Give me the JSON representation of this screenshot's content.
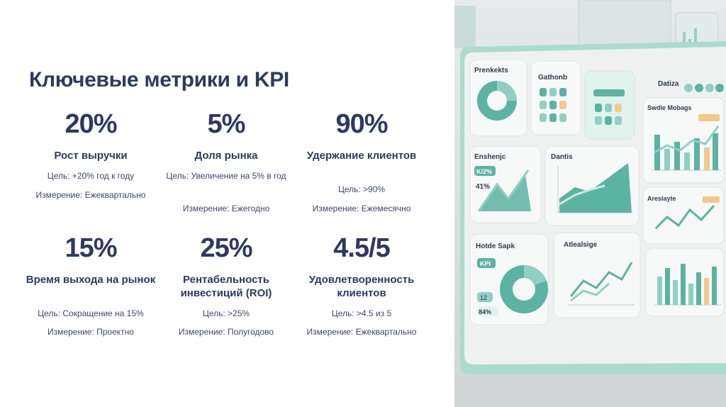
{
  "title": "Ключевые метрики и KPI",
  "metrics": [
    {
      "value": "20%",
      "name": "Рост выручки",
      "goal": "Цель: +20% год к году",
      "measure": "Измерение: Ежеквартально"
    },
    {
      "value": "5%",
      "name": "Доля рынка",
      "goal": "Цель: Увеличение на 5% в год",
      "measure": "Измерение: Ежегодно"
    },
    {
      "value": "90%",
      "name": "Удержание клиентов",
      "goal": "Цель: >90%",
      "measure": "Измерение: Ежемесячно"
    },
    {
      "value": "15%",
      "name": "Время выхода на рынок",
      "goal": "Цель: Сокращение на 15%",
      "measure": "Измерение: Проектно"
    },
    {
      "value": "25%",
      "name": "Рентабельность инвестиций (ROI)",
      "goal": "Цель: >25%",
      "measure": "Измерение: Полугодово"
    },
    {
      "value": "4.5/5",
      "name": "Удовлетворенность клиентов",
      "goal": "Цель: >4.5 из 5",
      "measure": "Измерение: Ежеквартально"
    }
  ],
  "illustration": {
    "labels": {
      "p1": "Prenkekts",
      "p2": "Gathonb",
      "p3": "Datiza",
      "p4": "Swdle Mobags",
      "p5": "Enshenjc",
      "p6": "Dantis",
      "p7": "Areslayte",
      "p8": "Hotde Sapk",
      "p9": "Atlealsige",
      "badge1": "K/2%",
      "val1": "41%",
      "badge2": "KPI",
      "badge3": "12",
      "val2": "84%"
    }
  }
}
